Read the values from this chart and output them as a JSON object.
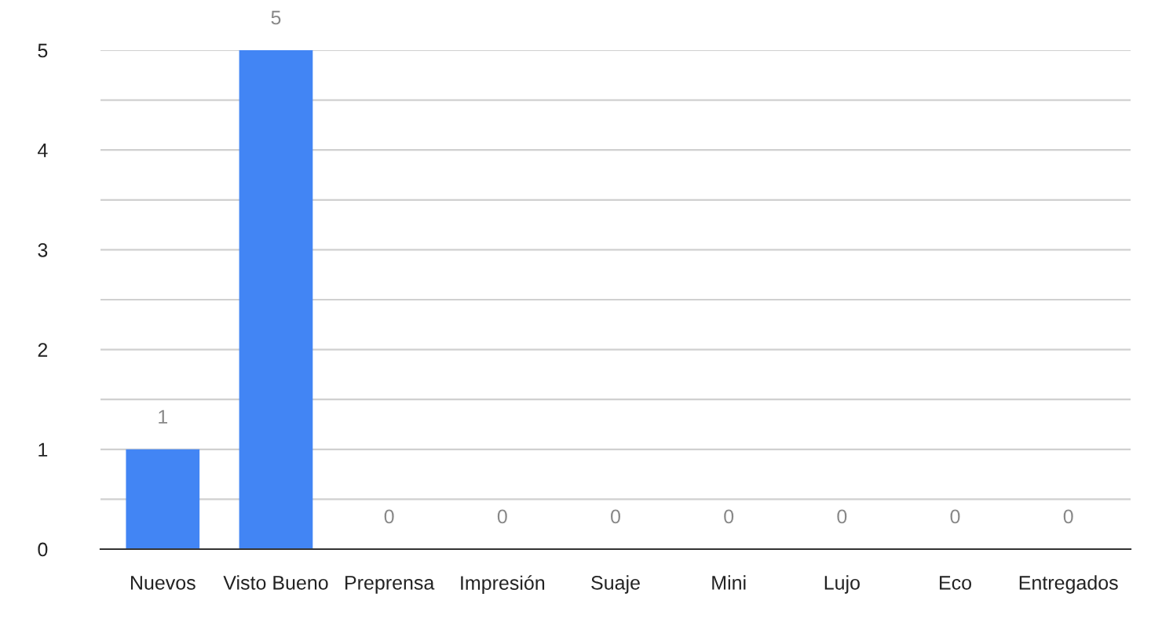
{
  "chart_data": {
    "type": "bar",
    "categories": [
      "Nuevos",
      "Visto Bueno",
      "Preprensa",
      "Impresión",
      "Suaje",
      "Mini",
      "Lujo",
      "Eco",
      "Entregados"
    ],
    "values": [
      1,
      5,
      0,
      0,
      0,
      0,
      0,
      0,
      0
    ],
    "color": "#4285f4",
    "ylim": [
      0,
      5
    ],
    "yticks": [
      0,
      {
        "value": 0.5,
        "label": null
      },
      1,
      {
        "value": 1.5,
        "label": null
      },
      2,
      {
        "value": 2.5,
        "label": null
      },
      3,
      {
        "value": 3.5,
        "label": null
      },
      4,
      {
        "value": 4.5,
        "label": null
      },
      5
    ],
    "grid": "y",
    "data_labels": true
  }
}
